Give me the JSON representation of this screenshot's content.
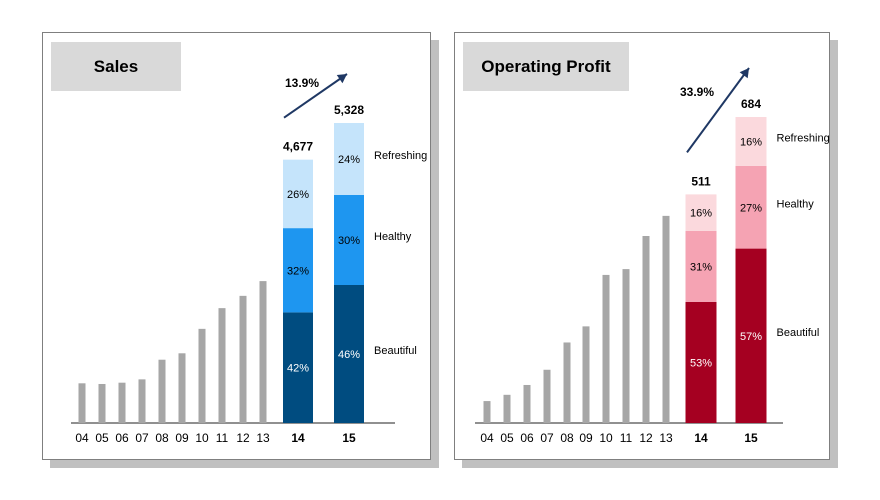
{
  "colors": {
    "history_bar": "#a6a6a6",
    "sales_segments": [
      "#004c80",
      "#1e96f0",
      "#c5e4fb"
    ],
    "profit_segments": [
      "#a50021",
      "#f5a3b3",
      "#fbd9dd"
    ],
    "arrow": "#1f3864"
  },
  "chart_data": [
    {
      "type": "bar",
      "title": "Sales",
      "categories": [
        "04",
        "05",
        "06",
        "07",
        "08",
        "09",
        "10",
        "11",
        "12",
        "13",
        "14",
        "15"
      ],
      "history_values": [
        705,
        693,
        716,
        775,
        1124,
        1238,
        1672,
        2040,
        2258,
        2520
      ],
      "stacked_categories": [
        "14",
        "15"
      ],
      "totals": [
        4677,
        5328
      ],
      "total_labels": [
        "4,677",
        "5,328"
      ],
      "segment_names": [
        "Beautiful",
        "Healthy",
        "Refreshing"
      ],
      "segment_labels": [
        [
          "42%",
          "32%",
          "26%"
        ],
        [
          "46%",
          "30%",
          "24%"
        ]
      ],
      "segment_shares": [
        [
          0.42,
          0.32,
          0.26
        ],
        [
          0.46,
          0.3,
          0.24
        ]
      ],
      "growth_label": "13.9%",
      "ylim": [
        0,
        5328
      ]
    },
    {
      "type": "bar",
      "title": "Operating Profit",
      "categories": [
        "04",
        "05",
        "06",
        "07",
        "08",
        "09",
        "10",
        "11",
        "12",
        "13",
        "14",
        "15"
      ],
      "history_values": [
        49,
        63,
        85,
        119,
        180,
        216,
        331,
        344,
        418,
        463
      ],
      "stacked_categories": [
        "14",
        "15"
      ],
      "totals": [
        511,
        684
      ],
      "total_labels": [
        "511",
        "684"
      ],
      "segment_names": [
        "Beautiful",
        "Healthy",
        "Refreshing"
      ],
      "segment_labels": [
        [
          "53%",
          "31%",
          "16%"
        ],
        [
          "57%",
          "27%",
          "16%"
        ]
      ],
      "segment_shares": [
        [
          0.53,
          0.31,
          0.16
        ],
        [
          0.57,
          0.27,
          0.16
        ]
      ],
      "growth_label": "33.9%",
      "ylim": [
        0,
        684
      ]
    }
  ]
}
